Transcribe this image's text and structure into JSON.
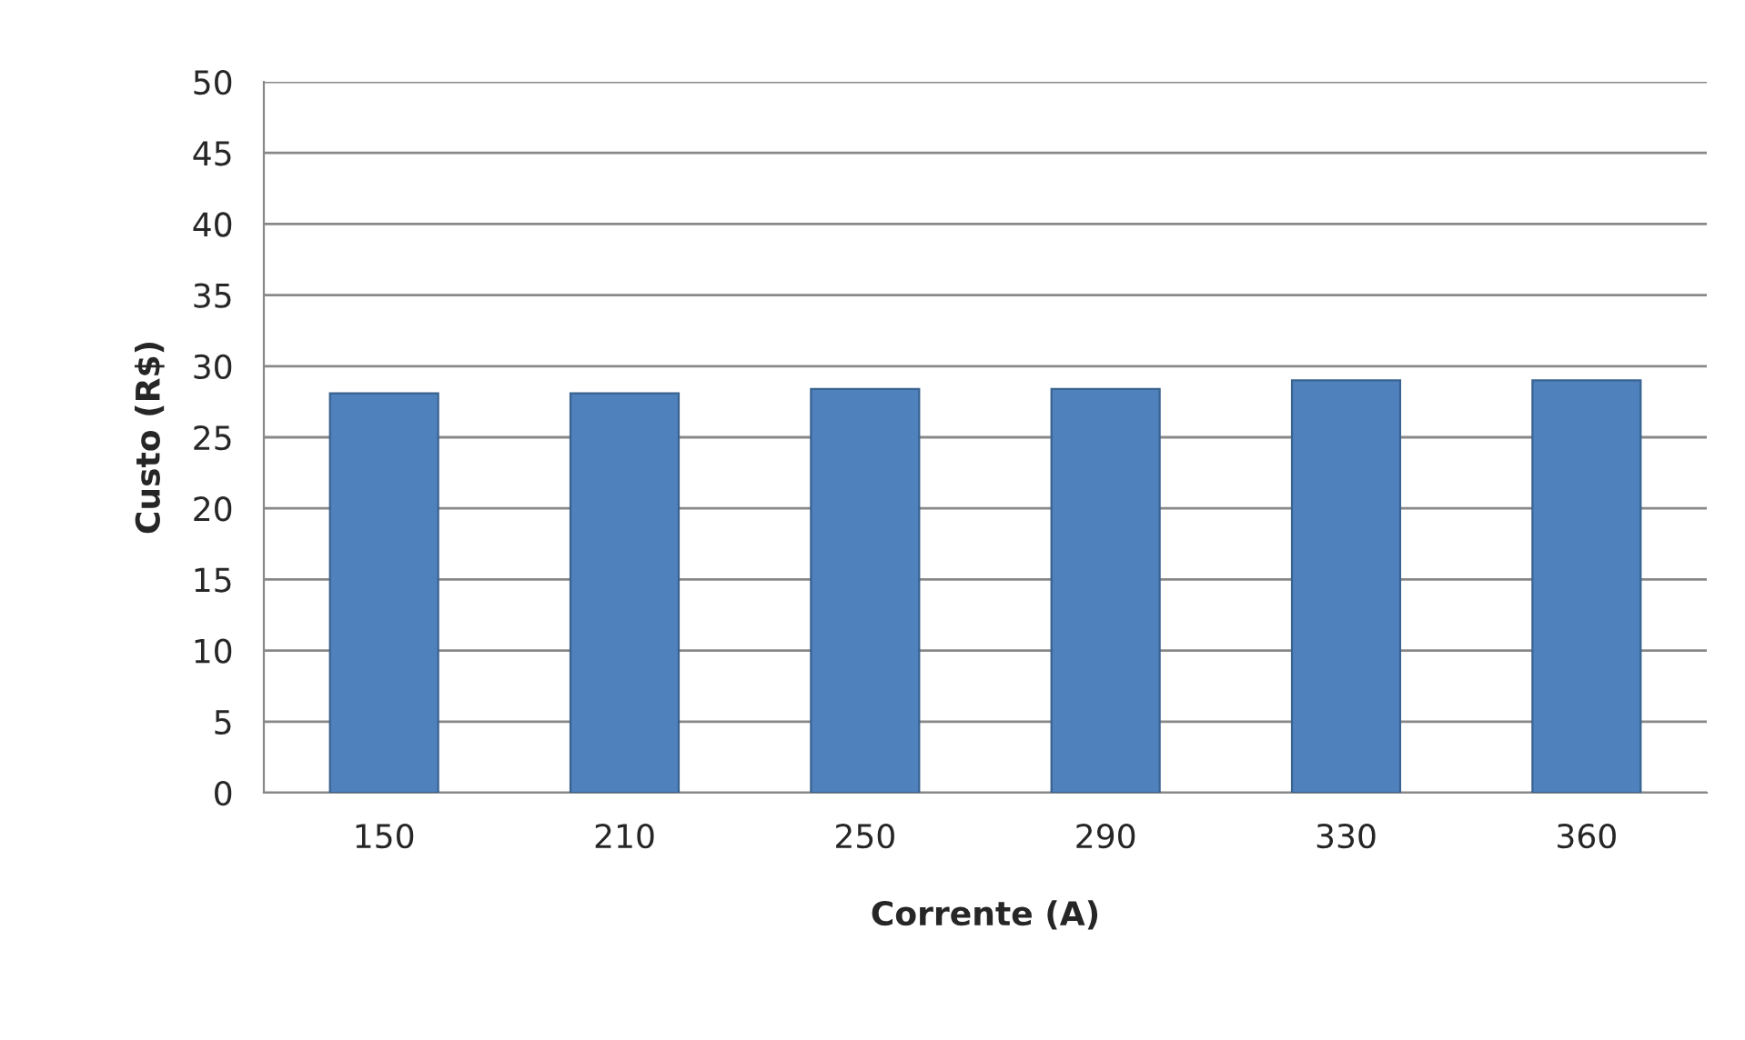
{
  "chart_data": {
    "type": "bar",
    "xlabel": "Corrente (A)",
    "ylabel": "Custo (R$)",
    "categories": [
      "150",
      "210",
      "250",
      "290",
      "330",
      "360"
    ],
    "values": [
      28.1,
      28.1,
      28.4,
      28.4,
      29.0,
      29.0
    ],
    "color": "#4f81bd",
    "ylim": [
      0,
      50
    ],
    "yticks": [
      0,
      5,
      10,
      15,
      20,
      25,
      30,
      35,
      40,
      45,
      50
    ],
    "grid": "y"
  }
}
